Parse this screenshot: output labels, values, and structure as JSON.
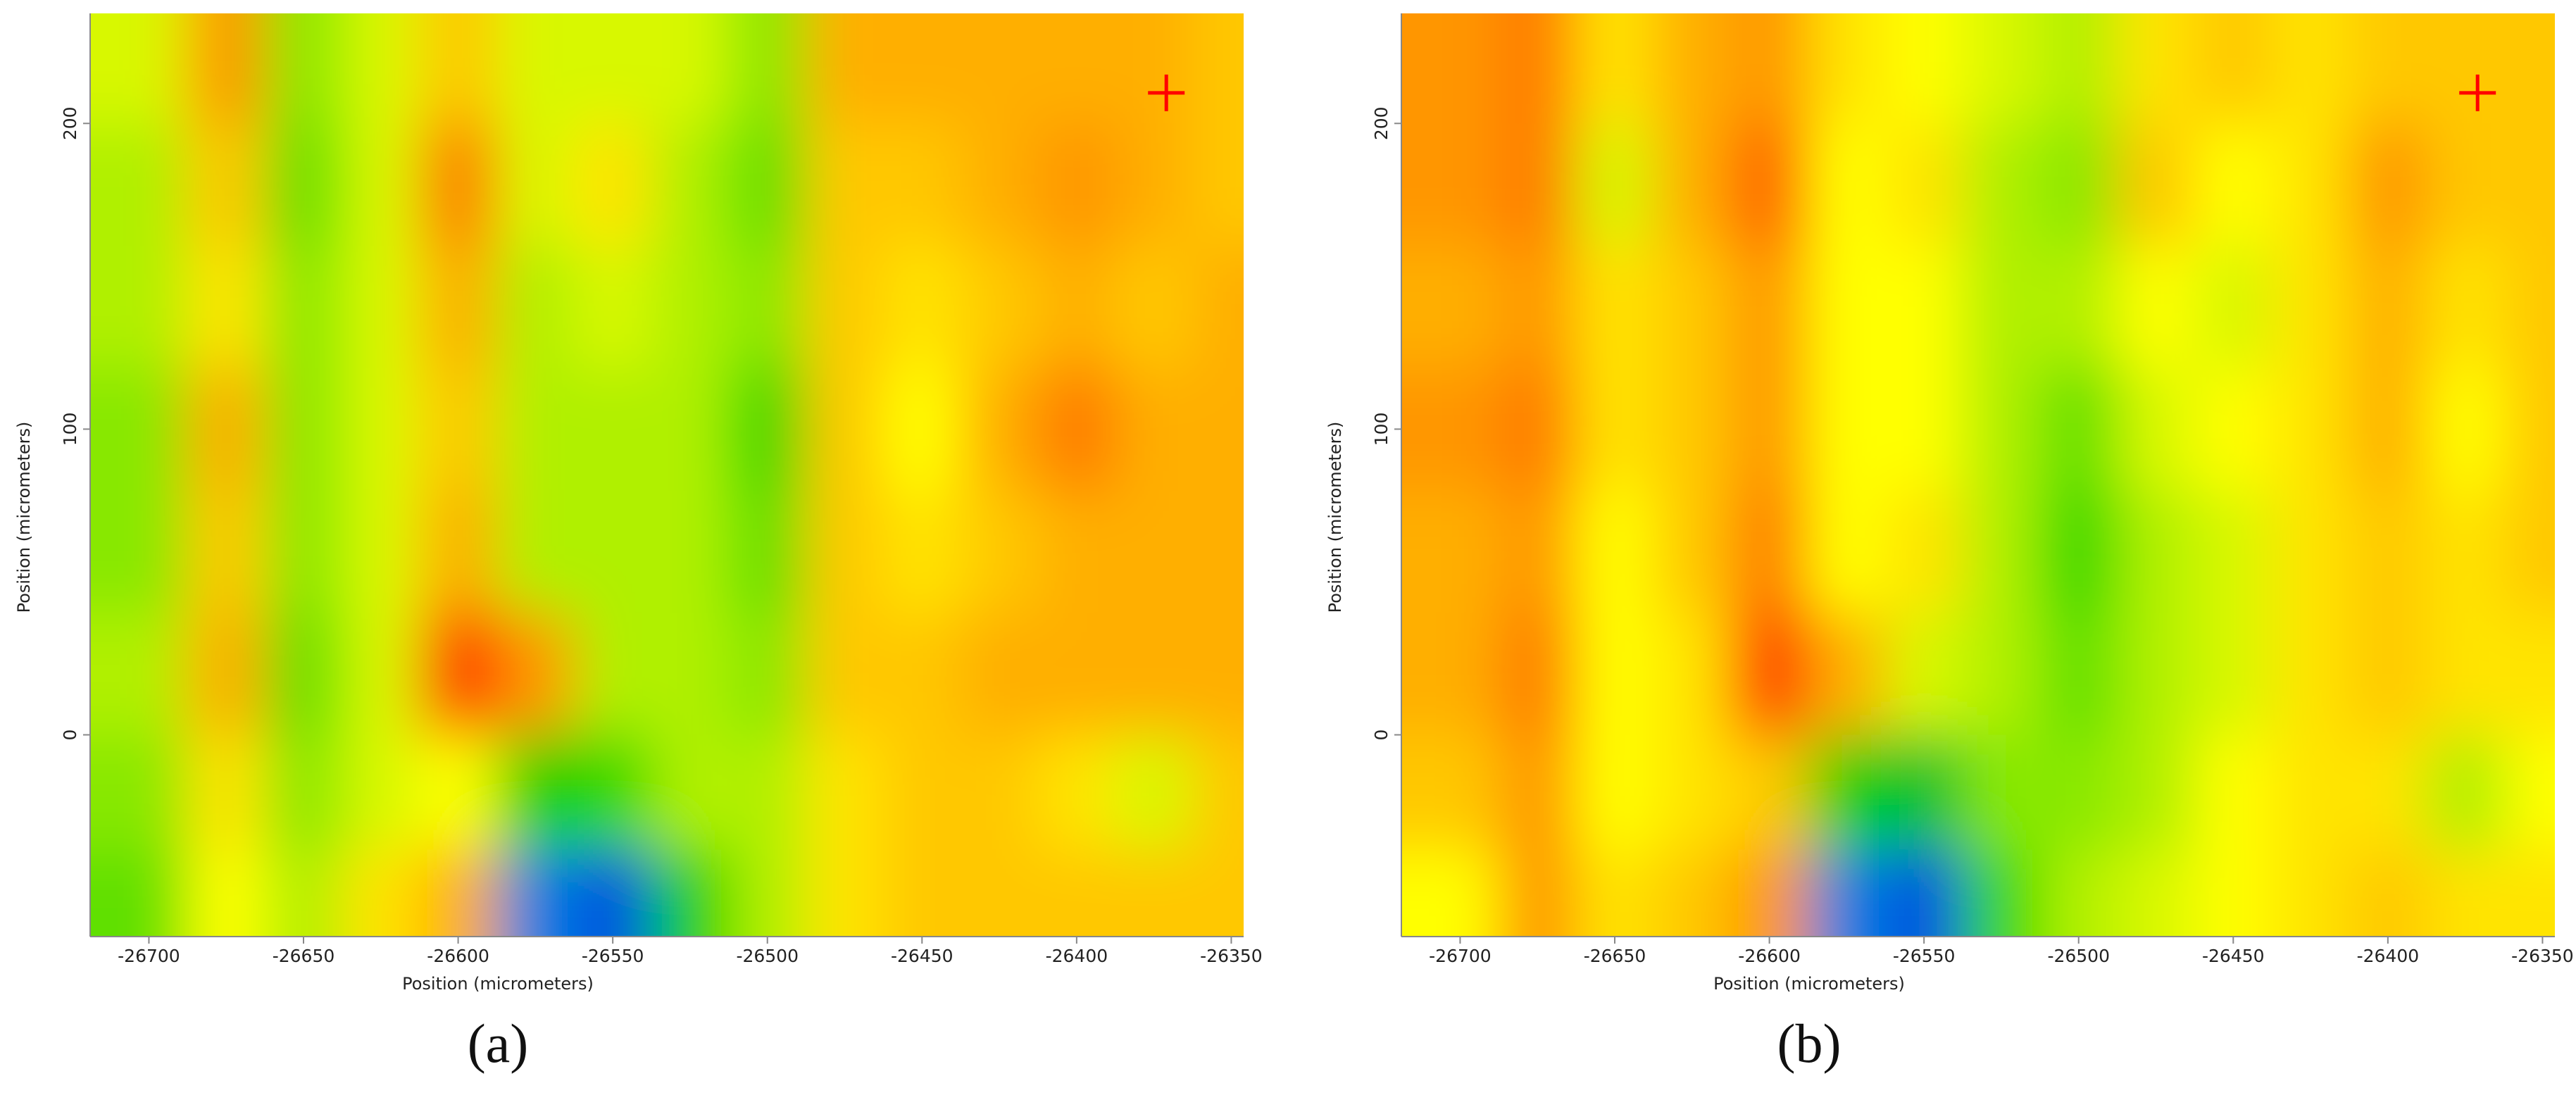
{
  "chart_data": [
    {
      "type": "heatmap",
      "label": "(a)",
      "xlabel": "Position (micrometers)",
      "ylabel": "Position (micrometers)",
      "xlim": [
        -26719,
        -26346
      ],
      "ylim": [
        -66,
        236
      ],
      "xticks": [
        -26700,
        -26650,
        -26600,
        -26550,
        -26500,
        -26450,
        -26400,
        -26350
      ],
      "yticks": [
        0,
        100,
        200
      ],
      "zlim": [
        0,
        10
      ],
      "colors": [
        "#0020e0",
        "#0080e0",
        "#00b060",
        "#00d000",
        "#60e000",
        "#b0f000",
        "#ffff00",
        "#ffc800",
        "#ff9600",
        "#ff6000",
        "#ff1000"
      ],
      "x": [
        -26700,
        -26675,
        -26650,
        -26625,
        -26600,
        -26575,
        -26550,
        -26525,
        -26500,
        -26475,
        -26450,
        -26425,
        -26400,
        -26375,
        -26350
      ],
      "y": [
        220,
        180,
        140,
        100,
        60,
        20,
        -20,
        -55
      ],
      "z": [
        [
          5.5,
          8,
          4.5,
          5.5,
          7,
          5.5,
          5.5,
          5.5,
          4.5,
          7.5,
          7.5,
          7.5,
          7.5,
          7.5,
          7
        ],
        [
          5,
          7,
          4,
          5.5,
          8.5,
          5.5,
          6.5,
          5,
          4,
          7,
          7,
          7.5,
          8,
          7.5,
          7
        ],
        [
          5,
          6.5,
          4.5,
          5.5,
          7.5,
          5,
          5.5,
          5,
          4.5,
          7,
          6.5,
          7,
          7.5,
          7,
          7.5
        ],
        [
          4.5,
          7.5,
          4.5,
          5.5,
          7,
          5,
          5,
          5,
          3.5,
          7,
          6,
          7.5,
          8.5,
          7.5,
          7.5
        ],
        [
          4.5,
          7,
          4.5,
          5.5,
          7.5,
          5,
          5,
          5,
          4,
          7,
          6.5,
          7,
          7.5,
          7.5,
          7.5
        ],
        [
          5,
          7.5,
          4,
          5.5,
          9.5,
          8,
          5,
          5,
          4.5,
          7,
          7,
          7.5,
          7.5,
          7.5,
          7.5
        ],
        [
          4.5,
          6.5,
          4.5,
          5.5,
          6,
          3,
          3.5,
          5,
          5,
          6.5,
          7,
          7,
          6.5,
          5.5,
          7
        ],
        [
          4,
          6,
          5,
          6.5,
          7.5,
          1,
          0.5,
          3,
          5,
          6.5,
          7,
          7,
          7,
          7,
          7
        ]
      ],
      "marker": {
        "x": -26371,
        "y": 210,
        "color": "#ff0000"
      }
    },
    {
      "type": "heatmap",
      "label": "(b)",
      "xlabel": "Position (micrometers)",
      "ylabel": "Position (micrometers)",
      "xlim": [
        -26719,
        -26346
      ],
      "ylim": [
        -66,
        236
      ],
      "xticks": [
        -26700,
        -26650,
        -26600,
        -26550,
        -26500,
        -26450,
        -26400,
        -26350
      ],
      "yticks": [
        0,
        100,
        200
      ],
      "zlim": [
        0,
        10
      ],
      "colors": [
        "#0020e0",
        "#0080e0",
        "#00b060",
        "#00d000",
        "#60e000",
        "#b0f000",
        "#ffff00",
        "#ffc800",
        "#ff9600",
        "#ff6000",
        "#ff1000"
      ],
      "x": [
        -26700,
        -26675,
        -26650,
        -26625,
        -26600,
        -26575,
        -26550,
        -26525,
        -26500,
        -26475,
        -26450,
        -26425,
        -26400,
        -26375,
        -26350
      ],
      "y": [
        220,
        180,
        140,
        100,
        60,
        20,
        -20,
        -55
      ],
      "z": [
        [
          8,
          8.5,
          6.5,
          7.5,
          8,
          6.5,
          6,
          5.5,
          5,
          6.5,
          7,
          6.5,
          7,
          7,
          7
        ],
        [
          8,
          8.5,
          5.5,
          7.5,
          9,
          6,
          6.5,
          5,
          4.5,
          7,
          6,
          6.5,
          8,
          7,
          7
        ],
        [
          7.5,
          8,
          6.5,
          7,
          8,
          6,
          6,
          5,
          5,
          6,
          5.5,
          6.5,
          7.5,
          6.5,
          7
        ],
        [
          8,
          8.5,
          6.5,
          7,
          8,
          6,
          6,
          5,
          4,
          5.5,
          6,
          6.5,
          7.5,
          6,
          7
        ],
        [
          7.5,
          8,
          6,
          7,
          8.5,
          6,
          6.5,
          5,
          3.5,
          5,
          5.5,
          6.5,
          7,
          6.5,
          7
        ],
        [
          7.5,
          8.5,
          6,
          6.5,
          9.5,
          7.5,
          5.5,
          5,
          4,
          5,
          5.5,
          6.5,
          7,
          6.5,
          6.5
        ],
        [
          7,
          8,
          6,
          6.5,
          7,
          3,
          2.5,
          4.5,
          4.5,
          5,
          6,
          6.5,
          6.5,
          5,
          6
        ],
        [
          6,
          8,
          6.5,
          7,
          8,
          1,
          0.5,
          3.5,
          5,
          5.5,
          6,
          6.5,
          7,
          6.5,
          6.5
        ]
      ],
      "marker": {
        "x": -26371,
        "y": 210,
        "color": "#ff0000"
      }
    }
  ]
}
